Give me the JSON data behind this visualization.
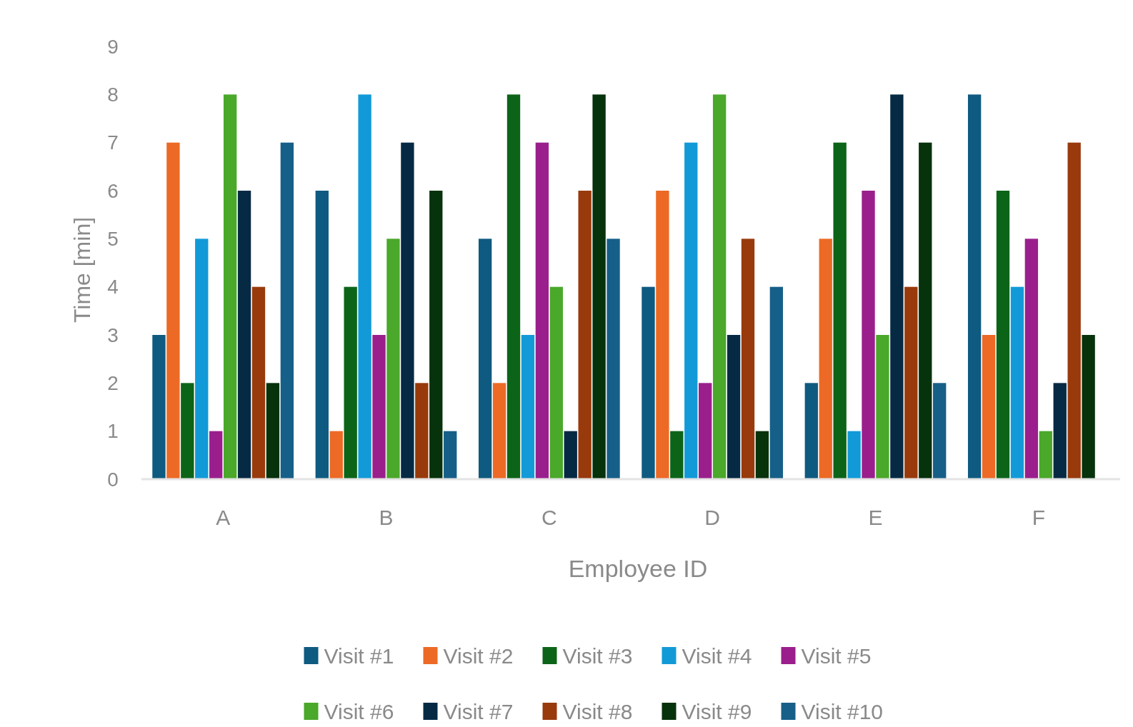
{
  "chart_data": {
    "type": "bar",
    "xlabel": "Employee ID",
    "ylabel": "Time [min]",
    "categories": [
      "A",
      "B",
      "C",
      "D",
      "E",
      "F"
    ],
    "ylim": [
      0,
      9
    ],
    "yticks": [
      0,
      1,
      2,
      3,
      4,
      5,
      6,
      7,
      8,
      9
    ],
    "grid": false,
    "legend": "bottom",
    "series": [
      {
        "name": "Visit #1",
        "color": "#0f5a80",
        "values": [
          3,
          6,
          5,
          4,
          2,
          8
        ]
      },
      {
        "name": "Visit #2",
        "color": "#ec6a25",
        "values": [
          7,
          1,
          2,
          6,
          5,
          3
        ]
      },
      {
        "name": "Visit #3",
        "color": "#0c6418",
        "values": [
          2,
          4,
          8,
          1,
          7,
          6
        ]
      },
      {
        "name": "Visit #4",
        "color": "#129ad8",
        "values": [
          5,
          8,
          3,
          7,
          1,
          4
        ]
      },
      {
        "name": "Visit #5",
        "color": "#9a1f8c",
        "values": [
          1,
          3,
          7,
          2,
          6,
          5
        ]
      },
      {
        "name": "Visit #6",
        "color": "#4aa82a",
        "values": [
          8,
          5,
          4,
          8,
          3,
          1
        ]
      },
      {
        "name": "Visit #7",
        "color": "#062a44",
        "values": [
          6,
          7,
          1,
          3,
          8,
          2
        ]
      },
      {
        "name": "Visit #8",
        "color": "#983a0c",
        "values": [
          4,
          2,
          6,
          5,
          4,
          7
        ]
      },
      {
        "name": "Visit #9",
        "color": "#06320c",
        "values": [
          2,
          6,
          8,
          1,
          7,
          3
        ]
      },
      {
        "name": "Visit #10",
        "color": "#165f88",
        "values": [
          7,
          1,
          5,
          4,
          2,
          null
        ]
      }
    ]
  }
}
